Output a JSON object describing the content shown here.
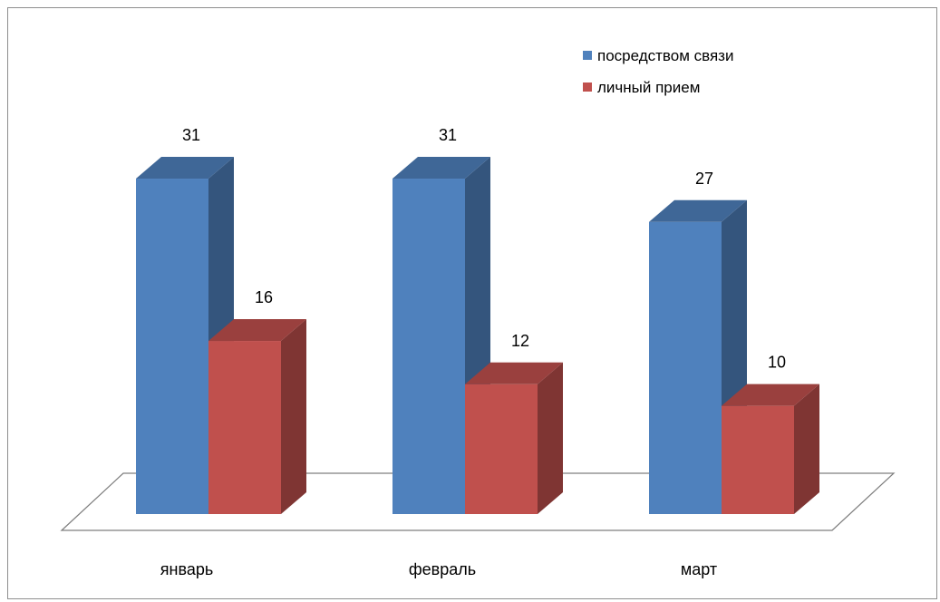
{
  "chart_data": {
    "type": "bar",
    "categories": [
      "январь",
      "февраль",
      "март"
    ],
    "series": [
      {
        "name": "посредством связи",
        "values": [
          31,
          31,
          27
        ],
        "color": "#4F81BD"
      },
      {
        "name": "личный прием",
        "values": [
          16,
          12,
          10
        ],
        "color": "#C0504D"
      }
    ],
    "data_labels": true,
    "legend_position": "top-right",
    "grid": false,
    "style": "3d-clustered-column",
    "ylim": [
      0,
      31
    ]
  }
}
